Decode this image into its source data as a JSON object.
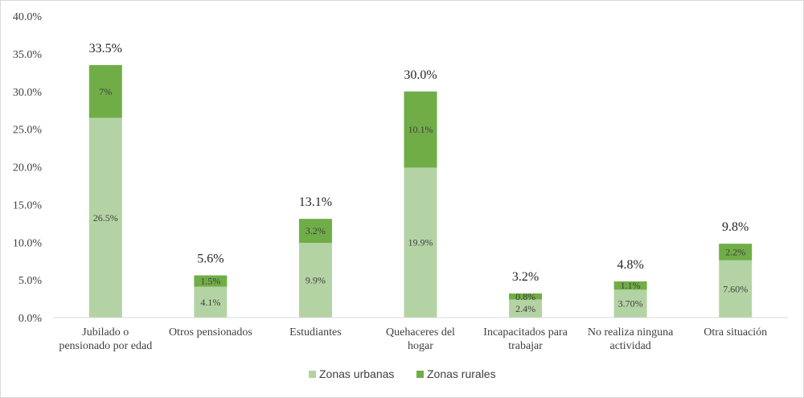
{
  "chart_data": {
    "type": "bar",
    "stacked": true,
    "categories": [
      [
        "Jubilado o",
        "pensionado por edad"
      ],
      [
        "Otros pensionados"
      ],
      [
        "Estudiantes"
      ],
      [
        "Quehaceres del",
        "hogar"
      ],
      [
        "Incapacitados para",
        "trabajar"
      ],
      [
        "No realiza ninguna",
        "actividad"
      ],
      [
        "Otra situación"
      ]
    ],
    "series": [
      {
        "name": "Zonas urbanas",
        "color": "#b4d3a4",
        "values": [
          26.5,
          4.1,
          9.9,
          19.9,
          2.4,
          3.7,
          7.6
        ],
        "labels": [
          "26.5%",
          "4.1%",
          "9.9%",
          "19.9%",
          "2.4%",
          "3.70%",
          "7.60%"
        ]
      },
      {
        "name": "Zonas rurales",
        "color": "#70ad47",
        "values": [
          7.0,
          1.5,
          3.2,
          10.1,
          0.8,
          1.1,
          2.2
        ],
        "labels": [
          "7%",
          "1.5%",
          "3.2%",
          "10.1%",
          "0.8%",
          "1.1%",
          "2.2%"
        ]
      }
    ],
    "totals": [
      "33.5%",
      "5.6%",
      "13.1%",
      "30.0%",
      "3.2%",
      "4.8%",
      "9.8%"
    ],
    "yticks": [
      "0.0%",
      "5.0%",
      "10.0%",
      "15.0%",
      "20.0%",
      "25.0%",
      "30.0%",
      "35.0%",
      "40.0%"
    ],
    "ylim": [
      0,
      40
    ],
    "grid": false,
    "legend_position": "bottom",
    "axis_color": "#d9d9d9",
    "title": "",
    "xlabel": "",
    "ylabel": ""
  }
}
